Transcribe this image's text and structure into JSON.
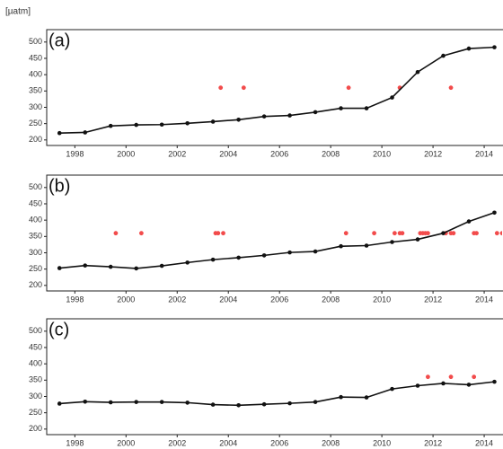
{
  "chart_data": [
    {
      "type": "line",
      "title": "(a)",
      "ylabel": "[µatm]",
      "xlim": [
        1996.9,
        2014.7
      ],
      "xticks": [
        1998,
        2000,
        2002,
        2004,
        2006,
        2008,
        2010,
        2012,
        2014
      ],
      "ylim": [
        183,
        538
      ],
      "yticks": [
        200,
        250,
        300,
        350,
        400,
        450,
        500
      ],
      "series": [
        {
          "type": "line",
          "color": "#111111",
          "x": [
            1997.4,
            1998.4,
            1999.4,
            2000.4,
            2001.4,
            2002.4,
            2003.4,
            2004.4,
            2005.4,
            2006.4,
            2007.4,
            2008.4,
            2009.4,
            2010.4,
            2011.4,
            2012.4,
            2013.4,
            2014.4
          ],
          "values": [
            221,
            223,
            243,
            246,
            247,
            251,
            256,
            262,
            272,
            275,
            285,
            297,
            297,
            330,
            408,
            458,
            480,
            484
          ]
        },
        {
          "type": "scatter",
          "color": "#f24b4b",
          "x": [
            2003.7,
            2004.6,
            2008.7,
            2010.7,
            2012.7
          ],
          "values": [
            360,
            360,
            360,
            360,
            360
          ]
        }
      ]
    },
    {
      "type": "line",
      "title": "(b)",
      "xlim": [
        1996.9,
        2014.7
      ],
      "xticks": [
        1998,
        2000,
        2002,
        2004,
        2006,
        2008,
        2010,
        2012,
        2014
      ],
      "ylim": [
        183,
        538
      ],
      "yticks": [
        200,
        250,
        300,
        350,
        400,
        450,
        500
      ],
      "series": [
        {
          "type": "line",
          "color": "#111111",
          "x": [
            1997.4,
            1998.4,
            1999.4,
            2000.4,
            2001.4,
            2002.4,
            2003.4,
            2004.4,
            2005.4,
            2006.4,
            2007.4,
            2008.4,
            2009.4,
            2010.4,
            2011.4,
            2012.4,
            2013.4,
            2014.4
          ],
          "values": [
            253,
            261,
            257,
            252,
            260,
            270,
            279,
            285,
            292,
            301,
            304,
            320,
            322,
            333,
            341,
            360,
            396,
            423
          ]
        },
        {
          "type": "scatter",
          "color": "#f24b4b",
          "x": [
            1999.6,
            2000.6,
            2003.5,
            2003.6,
            2003.8,
            2008.6,
            2009.7,
            2010.5,
            2010.7,
            2010.8,
            2011.5,
            2011.6,
            2011.7,
            2011.8,
            2012.5,
            2012.7,
            2012.8,
            2013.6,
            2013.7,
            2014.5,
            2014.7
          ],
          "values": [
            360,
            360,
            360,
            360,
            360,
            360,
            360,
            360,
            360,
            360,
            360,
            360,
            360,
            360,
            360,
            360,
            360,
            360,
            360,
            360,
            360
          ]
        }
      ]
    },
    {
      "type": "line",
      "title": "(c)",
      "xlim": [
        1996.9,
        2014.7
      ],
      "xticks": [
        1998,
        2000,
        2002,
        2004,
        2006,
        2008,
        2010,
        2012,
        2014
      ],
      "ylim": [
        183,
        538
      ],
      "yticks": [
        200,
        250,
        300,
        350,
        400,
        450,
        500
      ],
      "series": [
        {
          "type": "line",
          "color": "#111111",
          "x": [
            1997.4,
            1998.4,
            1999.4,
            2000.4,
            2001.4,
            2002.4,
            2003.4,
            2004.4,
            2005.4,
            2006.4,
            2007.4,
            2008.4,
            2009.4,
            2010.4,
            2011.4,
            2012.4,
            2013.4,
            2014.4
          ],
          "values": [
            278,
            284,
            282,
            283,
            283,
            281,
            275,
            273,
            276,
            279,
            283,
            298,
            297,
            323,
            333,
            340,
            336,
            345
          ]
        },
        {
          "type": "scatter",
          "color": "#f24b4b",
          "x": [
            2011.8,
            2012.7,
            2013.6
          ],
          "values": [
            360,
            360,
            360
          ]
        }
      ]
    }
  ]
}
